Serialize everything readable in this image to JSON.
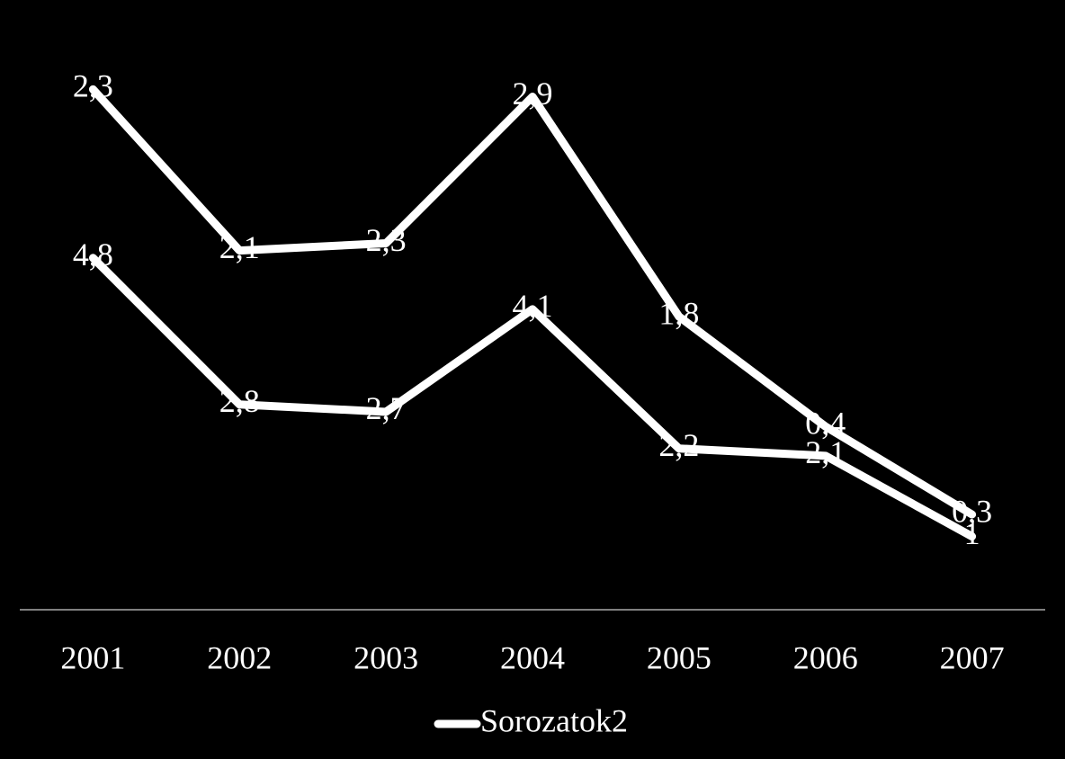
{
  "chart_data": {
    "type": "line",
    "stacked": true,
    "categories": [
      "2001",
      "2002",
      "2003",
      "2004",
      "2005",
      "2006",
      "2007"
    ],
    "series": [
      {
        "color": "#ffffff",
        "values": [
          4.8,
          2.8,
          2.7,
          4.1,
          2.2,
          2.1,
          1
        ],
        "value_labels": [
          "4,8",
          "2,8",
          "2,7",
          "4,1",
          "2,2",
          "2,1",
          "1"
        ]
      },
      {
        "name": "Sorozatok2",
        "color": "#ffffff",
        "values": [
          2.3,
          2.1,
          2.3,
          2.9,
          1.8,
          0.4,
          0.3
        ],
        "value_labels": [
          "2,3",
          "2,1",
          "2,3",
          "2,9",
          "1,8",
          "0,4",
          "0,3"
        ]
      }
    ],
    "ylim": [
      0,
      8
    ],
    "legend": "bottom"
  }
}
